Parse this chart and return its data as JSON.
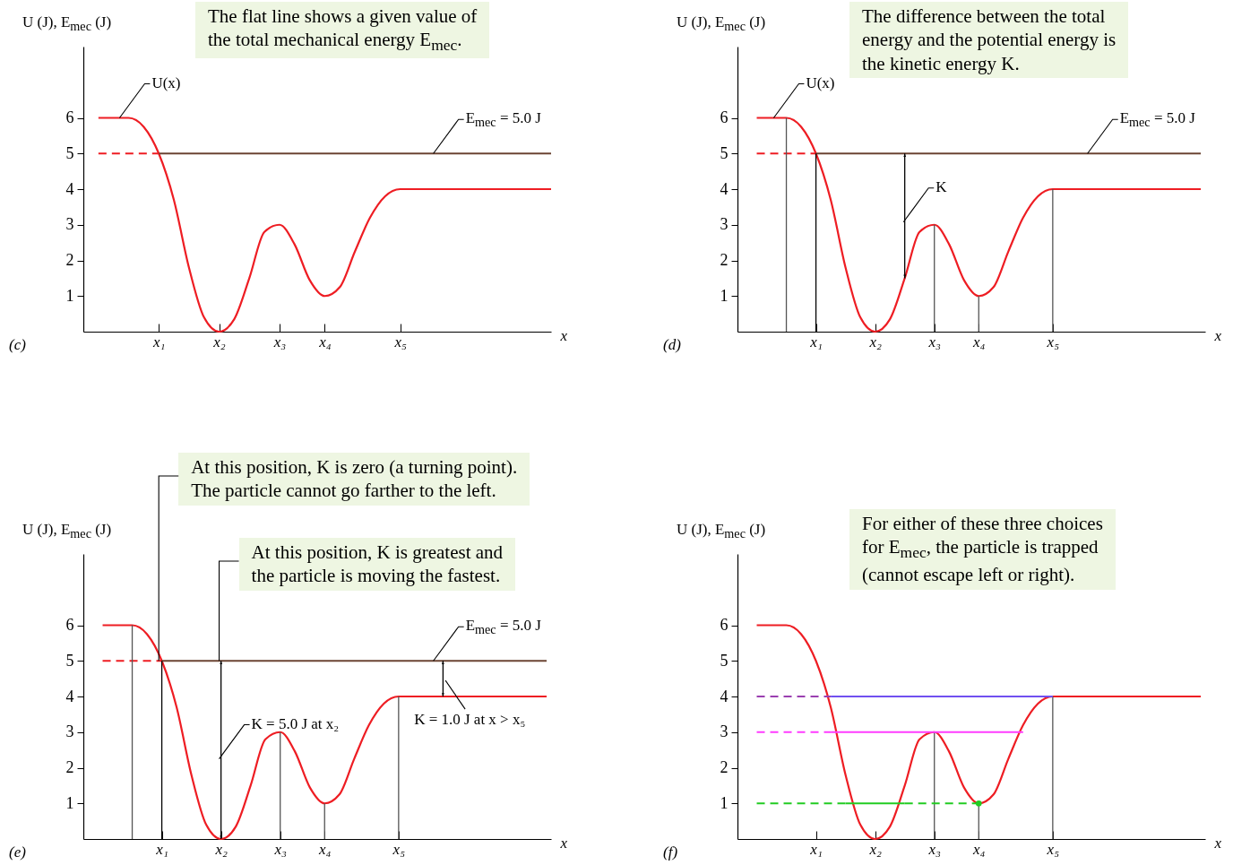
{
  "chart_data": [
    {
      "type": "line",
      "title": "The flat line shows a given value of\nthe total mechanical energy E$_{mec}$.",
      "xlabel": "x",
      "ylabel": "U (J),  E$_{mec}$ (J)",
      "ylim": [
        0,
        8
      ],
      "yticks": [
        1,
        2,
        3,
        4,
        5,
        6
      ],
      "categories": [
        null,
        null,
        null,
        null,
        null,
        "x₁",
        null,
        null,
        null,
        "x₂",
        null,
        null,
        null,
        "x₃",
        null,
        null,
        "x₄",
        null,
        null,
        null,
        null,
        "x₅",
        null,
        null,
        null,
        null,
        null,
        null,
        null,
        null,
        null,
        null
      ],
      "series": [
        {
          "name": "U(x)",
          "color": "#ee1d23",
          "values": [
            null,
            6,
            6,
            6,
            5.75,
            5,
            3.7,
            1.8,
            0.4,
            0,
            0.35,
            1.5,
            2.8,
            3,
            2.45,
            1.45,
            1,
            1.25,
            2.25,
            3.2,
            3.8,
            4,
            4,
            4,
            4,
            4,
            4,
            4,
            4,
            4,
            4,
            4
          ]
        },
        {
          "name": "E$_{mec}$ = 5.0  J",
          "color": "#6b4433",
          "values": [
            null,
            null,
            null,
            null,
            null,
            5,
            5,
            5,
            5,
            5,
            5,
            5,
            5,
            5,
            5,
            5,
            5,
            5,
            5,
            5,
            5,
            5,
            5,
            5,
            5,
            5,
            5,
            5,
            5,
            5,
            5,
            5
          ]
        },
        {
          "color": "#ee1d23",
          "line_style": "dashed",
          "values": [
            null,
            5,
            5,
            5,
            5,
            5,
            null,
            null,
            null,
            null,
            null,
            null,
            null,
            null,
            null,
            null,
            null,
            null,
            null,
            null,
            null,
            null,
            null,
            null,
            null,
            null,
            null,
            null,
            null,
            null,
            null,
            null
          ]
        }
      ],
      "annotations": [
        "(c)"
      ]
    },
    {
      "type": "line",
      "title": "The difference between the total\nenergy and the potential energy is\nthe kinetic energy K.",
      "xlabel": "x",
      "ylabel": "U (J),  E$_{mec}$ (J)",
      "ylim": [
        0,
        8
      ],
      "yticks": [
        1,
        2,
        3,
        4,
        5,
        6
      ],
      "categories": [
        null,
        null,
        null,
        null,
        null,
        "x₁",
        null,
        null,
        null,
        "x₂",
        null,
        null,
        null,
        "x₃",
        null,
        null,
        "x₄",
        null,
        null,
        null,
        null,
        "x₅",
        null,
        null,
        null,
        null,
        null,
        null,
        null,
        null,
        null,
        null
      ],
      "series": [
        {
          "name": "U(x)",
          "color": "#ee1d23",
          "values": [
            null,
            6,
            6,
            6,
            5.75,
            5,
            3.7,
            1.8,
            0.4,
            0,
            0.35,
            1.5,
            2.8,
            3,
            2.45,
            1.45,
            1,
            1.25,
            2.25,
            3.2,
            3.8,
            4,
            4,
            4,
            4,
            4,
            4,
            4,
            4,
            4,
            4,
            4
          ]
        },
        {
          "name": "E$_{mec}$ = 5.0  J",
          "color": "#6b4433",
          "values": [
            null,
            null,
            null,
            null,
            null,
            5,
            5,
            5,
            5,
            5,
            5,
            5,
            5,
            5,
            5,
            5,
            5,
            5,
            5,
            5,
            5,
            5,
            5,
            5,
            5,
            5,
            5,
            5,
            5,
            5,
            5,
            5
          ]
        },
        {
          "color": "#ee1d23",
          "line_style": "dashed",
          "values": [
            null,
            5,
            5,
            5,
            5,
            5,
            null,
            null,
            null,
            null,
            null,
            null,
            null,
            null,
            null,
            null,
            null,
            null,
            null,
            null,
            null,
            null,
            null,
            null,
            null,
            null,
            null,
            null,
            null,
            null,
            null,
            null
          ]
        },
        {
          "type": "bar",
          "color": "#555555",
          "values": [
            null,
            null,
            null,
            6,
            null,
            null,
            null,
            null,
            null,
            null,
            null,
            null,
            null,
            3,
            null,
            null,
            1,
            null,
            null,
            null,
            null,
            4,
            null,
            null,
            null,
            null,
            null,
            null,
            null,
            null,
            null,
            null
          ]
        },
        {
          "type": "bar",
          "color": "#000000",
          "values": [
            null,
            null,
            null,
            null,
            null,
            5,
            null,
            null,
            null,
            null,
            null,
            null,
            null,
            null,
            null,
            null,
            null,
            null,
            null,
            null,
            null,
            null,
            null,
            null,
            null,
            null,
            null,
            null,
            null,
            null,
            null,
            null
          ]
        },
        {
          "type": "bar",
          "name": "K",
          "color": "#000000",
          "marker": "triangle",
          "base": [
            null,
            null,
            null,
            null,
            null,
            null,
            null,
            null,
            null,
            null,
            null,
            1.5,
            null,
            null,
            null,
            null,
            null,
            null,
            null,
            null,
            null,
            null,
            null,
            null,
            null,
            null,
            null,
            null,
            null,
            null,
            null,
            null
          ],
          "values": [
            null,
            null,
            null,
            null,
            null,
            null,
            null,
            null,
            null,
            null,
            null,
            3.5,
            null,
            null,
            null,
            null,
            null,
            null,
            null,
            null,
            null,
            null,
            null,
            null,
            null,
            null,
            null,
            null,
            null,
            null,
            null,
            null
          ]
        }
      ],
      "annotations": [
        "(d)"
      ]
    },
    {
      "type": "line",
      "xlabel": "x",
      "ylabel": "U (J),  E$_{mec}$ (J)",
      "ylim": [
        0,
        8
      ],
      "yticks": [
        1,
        2,
        3,
        4,
        5,
        6
      ],
      "categories": [
        null,
        null,
        null,
        null,
        null,
        "x₁",
        null,
        null,
        null,
        "x₂",
        null,
        null,
        null,
        "x₃",
        null,
        null,
        "x₄",
        null,
        null,
        null,
        null,
        "x₅",
        null,
        null,
        null,
        null,
        null,
        null,
        null,
        null,
        null,
        null
      ],
      "series": [
        {
          "color": "#ee1d23",
          "values": [
            null,
            6,
            6,
            6,
            5.75,
            5,
            3.7,
            1.8,
            0.4,
            0,
            0.35,
            1.5,
            2.8,
            3,
            2.45,
            1.45,
            1,
            1.25,
            2.25,
            3.2,
            3.8,
            4,
            4,
            4,
            4,
            4,
            4,
            4,
            4,
            4,
            4,
            4
          ]
        },
        {
          "name": "E$_{mec}$ = 5.0  J",
          "color": "#6b4433",
          "values": [
            null,
            null,
            null,
            null,
            null,
            5,
            5,
            5,
            5,
            5,
            5,
            5,
            5,
            5,
            5,
            5,
            5,
            5,
            5,
            5,
            5,
            5,
            5,
            5,
            5,
            5,
            5,
            5,
            5,
            5,
            5,
            5
          ]
        },
        {
          "color": "#ee1d23",
          "line_style": "dashed",
          "values": [
            null,
            5,
            5,
            5,
            5,
            5,
            null,
            null,
            null,
            null,
            null,
            null,
            null,
            null,
            null,
            null,
            null,
            null,
            null,
            null,
            null,
            null,
            null,
            null,
            null,
            null,
            null,
            null,
            null,
            null,
            null,
            null
          ]
        },
        {
          "type": "bar",
          "color": "#555555",
          "values": [
            null,
            null,
            null,
            6,
            null,
            null,
            null,
            null,
            null,
            null,
            null,
            null,
            null,
            3,
            null,
            null,
            1,
            null,
            null,
            null,
            null,
            4,
            null,
            null,
            null,
            null,
            null,
            null,
            null,
            null,
            null,
            null
          ]
        },
        {
          "type": "bar",
          "color": "#000000",
          "values": [
            null,
            null,
            null,
            null,
            null,
            5,
            null,
            null,
            null,
            null,
            null,
            null,
            null,
            null,
            null,
            null,
            null,
            null,
            null,
            null,
            null,
            null,
            null,
            null,
            null,
            null,
            null,
            null,
            null,
            null,
            null,
            null
          ]
        },
        {
          "type": "bar",
          "name": "K = 5.0 J at x₂",
          "color": "#000000",
          "marker": "triangle",
          "values": [
            null,
            null,
            null,
            null,
            null,
            null,
            null,
            null,
            null,
            5,
            null,
            null,
            null,
            null,
            null,
            null,
            null,
            null,
            null,
            null,
            null,
            null,
            null,
            null,
            null,
            null,
            null,
            null,
            null,
            null,
            null,
            null
          ]
        },
        {
          "type": "bar",
          "name": "K = 1.0 J at x > x₅",
          "color": "#000000",
          "marker": "triangle",
          "base": [
            null,
            null,
            null,
            null,
            null,
            null,
            null,
            null,
            null,
            null,
            null,
            null,
            null,
            null,
            null,
            null,
            null,
            null,
            null,
            null,
            null,
            null,
            null,
            null,
            4,
            null,
            null,
            null,
            null,
            null,
            null,
            null
          ],
          "values": [
            null,
            null,
            null,
            null,
            null,
            null,
            null,
            null,
            null,
            null,
            null,
            null,
            null,
            null,
            null,
            null,
            null,
            null,
            null,
            null,
            null,
            null,
            null,
            null,
            1,
            null,
            null,
            null,
            null,
            null,
            null,
            null
          ]
        }
      ],
      "annotations": [
        "(e)",
        {
          "text": "At this position, K is zero (a turning point).\nThe particle cannot go farther to the left.",
          "x": "x₁",
          "y": 5
        },
        {
          "text": "At this position, K is greatest and\nthe particle is moving the fastest.",
          "x": "x₂",
          "y": 5
        }
      ]
    },
    {
      "type": "line",
      "title": "For either of these three choices\nfor E$_{mec}$, the particle is trapped\n(cannot escape left or right).",
      "xlabel": "x",
      "ylabel": "U (J),  E$_{mec}$ (J)",
      "ylim": [
        0,
        8
      ],
      "yticks": [
        1,
        2,
        3,
        4,
        5,
        6
      ],
      "categories": [
        null,
        null,
        null,
        null,
        null,
        "x₁",
        null,
        null,
        null,
        "x₂",
        null,
        null,
        null,
        "x₃",
        null,
        null,
        "x₄",
        null,
        null,
        null,
        null,
        "x₅",
        null,
        null,
        null,
        null,
        null,
        null,
        null,
        null,
        null,
        null
      ],
      "series": [
        {
          "color": "#ee1d23",
          "values": [
            null,
            6,
            6,
            6,
            5.75,
            5,
            3.7,
            1.8,
            0.4,
            0,
            0.35,
            1.5,
            2.8,
            3,
            2.45,
            1.45,
            1,
            1.25,
            2.25,
            3.2,
            3.8,
            4,
            4,
            4,
            4,
            4,
            4,
            4,
            4,
            4,
            4,
            4
          ]
        },
        {
          "type": "bar",
          "color": "#555555",
          "values": [
            null,
            null,
            null,
            null,
            null,
            null,
            null,
            null,
            null,
            null,
            null,
            null,
            null,
            3,
            null,
            null,
            1,
            null,
            null,
            null,
            null,
            4,
            null,
            null,
            null,
            null,
            null,
            null,
            null,
            null,
            null,
            null
          ]
        },
        {
          "color": "#9a3fb0",
          "line_style": "dashed",
          "values": [
            null,
            4,
            4,
            4,
            4,
            4,
            4,
            null,
            null,
            null,
            null,
            null,
            null,
            null,
            null,
            null,
            null,
            null,
            null,
            null,
            null,
            null,
            null,
            null,
            null,
            null,
            null,
            null,
            null,
            null,
            null,
            null
          ]
        },
        {
          "color": "#7050f0",
          "values": [
            null,
            null,
            null,
            null,
            null,
            null,
            4,
            4,
            4,
            4,
            4,
            4,
            4,
            4,
            4,
            4,
            4,
            4,
            4,
            4,
            4,
            4,
            null,
            null,
            null,
            null,
            null,
            null,
            null,
            null,
            null,
            null
          ]
        },
        {
          "color": "#ff3cff",
          "line_style": "dashed",
          "values": [
            null,
            3,
            3,
            3,
            3,
            3,
            3,
            null,
            null,
            null,
            null,
            null,
            null,
            null,
            null,
            null,
            null,
            null,
            null,
            null,
            null,
            null,
            null,
            null,
            null,
            null,
            null,
            null,
            null,
            null,
            null,
            null
          ]
        },
        {
          "color": "#ff3cff",
          "values": [
            null,
            null,
            null,
            null,
            null,
            null,
            3,
            3,
            3,
            3,
            3,
            3,
            3,
            3,
            3,
            3,
            3,
            3,
            3,
            3,
            null,
            null,
            null,
            null,
            null,
            null,
            null,
            null,
            null,
            null,
            null,
            null
          ]
        },
        {
          "color": "#22cc22",
          "line_style": "dashed",
          "values": [
            null,
            1,
            1,
            1,
            1,
            1,
            1,
            1,
            null,
            null,
            null,
            null,
            null,
            null,
            null,
            null,
            null,
            null,
            null,
            null,
            null,
            null,
            null,
            null,
            null,
            null,
            null,
            null,
            null,
            null,
            null,
            null
          ]
        },
        {
          "color": "#22cc22",
          "values": [
            null,
            null,
            null,
            null,
            null,
            null,
            null,
            1,
            1,
            1,
            1,
            1,
            null,
            null,
            null,
            null,
            null,
            null,
            null,
            null,
            null,
            null,
            null,
            null,
            null,
            null,
            null,
            null,
            null,
            null,
            null,
            null
          ]
        },
        {
          "color": "#22cc22",
          "line_style": "dashed",
          "values": [
            null,
            null,
            null,
            null,
            null,
            null,
            null,
            null,
            null,
            null,
            null,
            1,
            1,
            1,
            1,
            1,
            1,
            null,
            null,
            null,
            null,
            null,
            null,
            null,
            null,
            null,
            null,
            null,
            null,
            null,
            null,
            null
          ]
        },
        {
          "type": "scatter",
          "marker": "circle",
          "color": "#22cc22",
          "values": [
            null,
            null,
            null,
            null,
            null,
            null,
            null,
            null,
            null,
            null,
            null,
            null,
            null,
            null,
            null,
            null,
            1,
            null,
            null,
            null,
            null,
            null,
            null,
            null,
            null,
            null,
            null,
            null,
            null,
            null,
            null,
            null
          ]
        }
      ],
      "annotations": [
        "(f)"
      ]
    }
  ]
}
